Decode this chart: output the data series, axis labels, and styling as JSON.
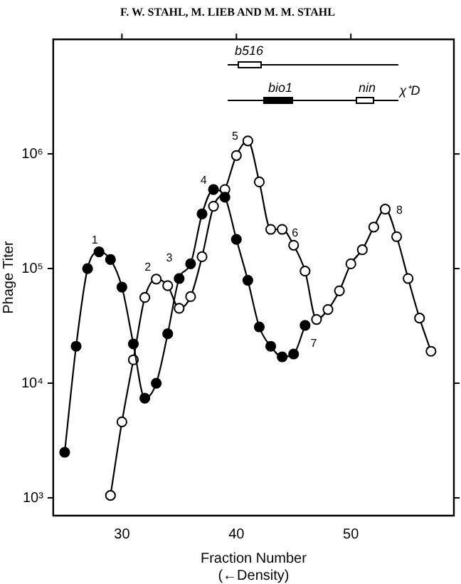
{
  "chart_data": {
    "type": "line",
    "title": "F. W. STAHL, M. LIEB AND M. M. STAHL",
    "xlabel": "Fraction Number\n(←Density)",
    "ylabel": "Phage Titer",
    "xlim": [
      24,
      59
    ],
    "xticks": [
      30,
      40,
      50
    ],
    "ylim": [
      700,
      10000000
    ],
    "log": true,
    "yticks": [
      {
        "value": 1000,
        "label": "10³"
      },
      {
        "value": 10000,
        "label": "10⁴"
      },
      {
        "value": 100000,
        "label": "10⁵"
      },
      {
        "value": 1000000,
        "label": "10⁶"
      }
    ],
    "grid": false,
    "legend": false,
    "marker": "circle",
    "line_style": "solid",
    "series": [
      {
        "color": "#000000",
        "x": [
          25,
          26,
          27,
          28,
          29,
          30,
          31,
          32,
          33,
          34,
          35,
          36,
          37,
          38,
          39,
          40,
          41,
          42,
          43,
          44,
          45,
          46
        ],
        "values": [
          2500,
          21000,
          100000,
          140000,
          120000,
          69000,
          22000,
          7400,
          10000,
          27000,
          82000,
          110000,
          300000,
          490000,
          420000,
          180000,
          79000,
          31000,
          21000,
          17000,
          18000,
          32000
        ]
      },
      {
        "color": "#000000",
        "x": [
          29,
          30,
          31,
          32,
          33,
          34,
          35,
          36,
          37,
          38,
          39,
          40,
          41,
          42,
          43,
          44,
          45,
          46,
          47,
          48,
          49,
          50,
          51,
          52,
          53,
          54,
          55,
          56,
          57
        ],
        "values": [
          1050,
          4600,
          16000,
          56000,
          81000,
          71000,
          45000,
          57000,
          127000,
          350000,
          490000,
          970000,
          1300000,
          570000,
          220000,
          220000,
          160000,
          95000,
          36000,
          44000,
          64000,
          110000,
          146000,
          230000,
          330000,
          190000,
          82000,
          37000,
          19000
        ]
      }
    ],
    "annotations": [
      "b516",
      "bio1",
      "nin",
      "χ⁺D",
      {
        "text": "1",
        "x": 28,
        "y": 140000
      },
      {
        "text": "2",
        "x": 33,
        "y": 81000
      },
      {
        "text": "3",
        "x": 35,
        "y": 82000
      },
      {
        "text": "4",
        "x": 38,
        "y": 490000
      },
      {
        "text": "5",
        "x": 41,
        "y": 1300000
      },
      {
        "text": "6",
        "x": 44,
        "y": 220000
      },
      {
        "text": "7",
        "x": 46,
        "y": 32000
      },
      {
        "text": "8",
        "x": 53,
        "y": 330000
      }
    ]
  }
}
